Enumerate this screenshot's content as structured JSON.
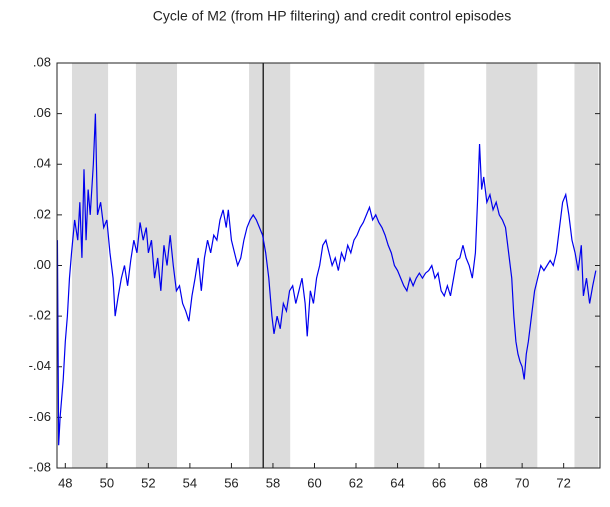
{
  "chart_data": {
    "type": "line",
    "title": "Cycle of M2 (from HP filtering) and credit control episodes",
    "color": "#0000ee",
    "shade_color": "#dcdcdc",
    "episodes": [
      [
        48.32,
        50.06
      ],
      [
        51.4,
        53.38
      ],
      [
        56.85,
        58.83
      ],
      [
        62.88,
        65.29
      ],
      [
        68.27,
        70.73
      ],
      [
        72.52,
        73.67
      ]
    ],
    "vline": 57.53,
    "xlim": [
      47.6,
      73.75
    ],
    "ylim": [
      -0.08,
      0.08
    ],
    "xticks": [
      48,
      50,
      52,
      54,
      56,
      58,
      60,
      62,
      64,
      66,
      68,
      70,
      72
    ],
    "yticks": [
      {
        "value": 0.08,
        "label": ".08"
      },
      {
        "value": 0.06,
        "label": ".06"
      },
      {
        "value": 0.04,
        "label": ".04"
      },
      {
        "value": 0.02,
        "label": ".02"
      },
      {
        "value": 0,
        "label": ".00"
      },
      {
        "value": -0.02,
        "label": "-.02"
      },
      {
        "value": -0.04,
        "label": "-.04"
      },
      {
        "value": -0.06,
        "label": "-.06"
      },
      {
        "value": -0.08,
        "label": "-.08"
      }
    ],
    "x": [
      47.62,
      47.68,
      47.75,
      47.9,
      48.0,
      48.1,
      48.2,
      48.3,
      48.45,
      48.6,
      48.7,
      48.8,
      48.9,
      49.0,
      49.1,
      49.2,
      49.35,
      49.45,
      49.55,
      49.7,
      49.85,
      50.0,
      50.15,
      50.3,
      50.4,
      50.55,
      50.7,
      50.85,
      51.0,
      51.15,
      51.3,
      51.45,
      51.6,
      51.75,
      51.9,
      52.0,
      52.15,
      52.3,
      52.45,
      52.6,
      52.75,
      52.9,
      53.05,
      53.2,
      53.35,
      53.5,
      53.65,
      53.8,
      53.95,
      54.1,
      54.25,
      54.4,
      54.55,
      54.7,
      54.85,
      55.0,
      55.15,
      55.3,
      55.45,
      55.6,
      55.75,
      55.85,
      56.0,
      56.15,
      56.3,
      56.45,
      56.6,
      56.75,
      56.9,
      57.05,
      57.2,
      57.35,
      57.5,
      57.65,
      57.8,
      57.95,
      58.05,
      58.2,
      58.35,
      58.5,
      58.65,
      58.8,
      58.95,
      59.1,
      59.25,
      59.4,
      59.55,
      59.65,
      59.8,
      59.95,
      60.1,
      60.25,
      60.4,
      60.55,
      60.7,
      60.85,
      61.0,
      61.15,
      61.3,
      61.45,
      61.6,
      61.75,
      61.9,
      62.05,
      62.2,
      62.35,
      62.5,
      62.65,
      62.8,
      62.95,
      63.1,
      63.25,
      63.4,
      63.55,
      63.7,
      63.85,
      64.0,
      64.15,
      64.3,
      64.45,
      64.6,
      64.75,
      64.9,
      65.05,
      65.2,
      65.35,
      65.5,
      65.65,
      65.8,
      65.95,
      66.1,
      66.25,
      66.4,
      66.55,
      66.7,
      66.85,
      67.0,
      67.15,
      67.3,
      67.45,
      67.6,
      67.75,
      67.85,
      67.95,
      68.05,
      68.15,
      68.3,
      68.45,
      68.6,
      68.75,
      68.9,
      69.05,
      69.2,
      69.35,
      69.5,
      69.6,
      69.7,
      69.8,
      69.9,
      70.0,
      70.1,
      70.2,
      70.3,
      70.45,
      70.6,
      70.75,
      70.9,
      71.05,
      71.2,
      71.35,
      71.5,
      71.65,
      71.8,
      71.95,
      72.1,
      72.25,
      72.4,
      72.55,
      72.7,
      72.85,
      72.95,
      73.1,
      73.25,
      73.4,
      73.55
    ],
    "values": [
      0.01,
      -0.071,
      -0.06,
      -0.045,
      -0.03,
      -0.02,
      -0.005,
      0.005,
      0.018,
      0.01,
      0.025,
      0.003,
      0.038,
      0.01,
      0.03,
      0.02,
      0.04,
      0.06,
      0.02,
      0.025,
      0.015,
      0.018,
      0.005,
      -0.005,
      -0.02,
      -0.012,
      -0.005,
      0.0,
      -0.008,
      0.002,
      0.01,
      0.005,
      0.017,
      0.01,
      0.015,
      0.005,
      0.01,
      -0.005,
      0.003,
      -0.01,
      0.008,
      0.0,
      0.012,
      0.0,
      -0.01,
      -0.008,
      -0.015,
      -0.018,
      -0.022,
      -0.012,
      -0.005,
      0.003,
      -0.01,
      0.003,
      0.01,
      0.005,
      0.012,
      0.01,
      0.018,
      0.022,
      0.015,
      0.022,
      0.01,
      0.005,
      0.0,
      0.003,
      0.01,
      0.015,
      0.018,
      0.02,
      0.018,
      0.015,
      0.012,
      0.005,
      -0.005,
      -0.02,
      -0.027,
      -0.02,
      -0.025,
      -0.015,
      -0.018,
      -0.01,
      -0.008,
      -0.015,
      -0.01,
      -0.005,
      -0.015,
      -0.028,
      -0.01,
      -0.015,
      -0.005,
      0.0,
      0.008,
      0.01,
      0.005,
      0.0,
      0.003,
      -0.002,
      0.005,
      0.002,
      0.008,
      0.005,
      0.01,
      0.012,
      0.015,
      0.017,
      0.02,
      0.023,
      0.018,
      0.02,
      0.017,
      0.015,
      0.012,
      0.008,
      0.005,
      0.0,
      -0.002,
      -0.005,
      -0.008,
      -0.01,
      -0.005,
      -0.008,
      -0.005,
      -0.003,
      -0.005,
      -0.003,
      -0.002,
      0.0,
      -0.005,
      -0.003,
      -0.01,
      -0.012,
      -0.008,
      -0.012,
      -0.005,
      0.002,
      0.003,
      0.008,
      0.003,
      0.0,
      -0.005,
      0.005,
      0.025,
      0.048,
      0.03,
      0.035,
      0.025,
      0.028,
      0.022,
      0.025,
      0.02,
      0.018,
      0.015,
      0.005,
      -0.005,
      -0.02,
      -0.03,
      -0.035,
      -0.038,
      -0.04,
      -0.045,
      -0.035,
      -0.03,
      -0.02,
      -0.01,
      -0.005,
      0.0,
      -0.002,
      0.0,
      0.002,
      0.0,
      0.005,
      0.015,
      0.025,
      0.028,
      0.02,
      0.01,
      0.005,
      -0.002,
      0.008,
      -0.012,
      -0.005,
      -0.015,
      -0.008,
      -0.002
    ]
  }
}
